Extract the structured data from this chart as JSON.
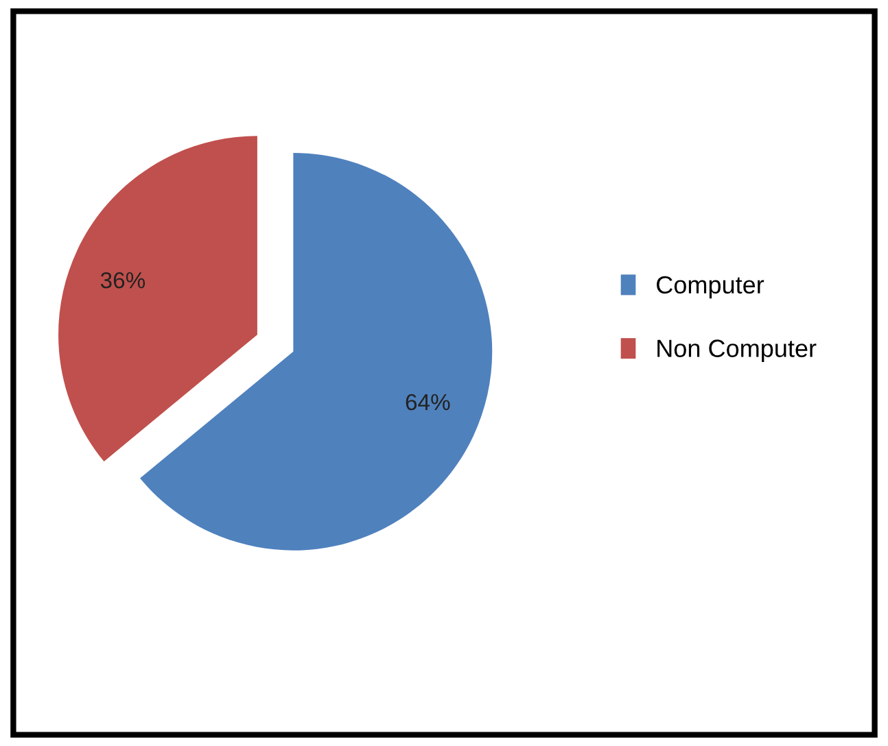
{
  "chart_data": {
    "type": "pie",
    "categories": [
      "Computer",
      "Non Computer"
    ],
    "values": [
      64,
      36
    ],
    "colors": [
      "#4f81bd",
      "#c0504d"
    ],
    "value_labels": [
      "64%",
      "36%"
    ],
    "legend": "right"
  }
}
